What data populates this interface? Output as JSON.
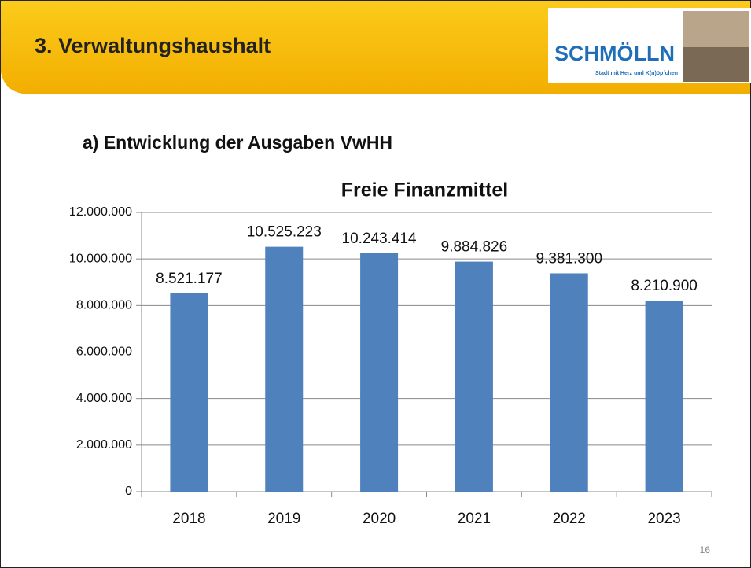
{
  "header": {
    "title": "3. Verwaltungshaushalt",
    "logo": "SCHMÖLLN",
    "slogan": "Stadt mit Herz und K(n)öpfchen"
  },
  "subtitle": "a)  Entwicklung der Ausgaben VwHH",
  "page_number": "16",
  "chart_data": {
    "type": "bar",
    "title": "Freie Finanzmittel",
    "categories": [
      "2018",
      "2019",
      "2020",
      "2021",
      "2022",
      "2023"
    ],
    "values": [
      8521177,
      10525223,
      10243414,
      9884826,
      9381300,
      8210900
    ],
    "value_labels": [
      "8.521.177",
      "10.525.223",
      "10.243.414",
      "9.884.826",
      "9.381.300",
      "8.210.900"
    ],
    "color": "#4f81bd",
    "ylim": [
      0,
      12000000
    ],
    "yticks": [
      0,
      {
        "value": 2000000,
        "label": "2.000.000"
      },
      {
        "value": 4000000,
        "label": "4.000.000"
      },
      {
        "value": 6000000,
        "label": "6.000.000"
      },
      {
        "value": 8000000,
        "label": "8.000.000"
      },
      {
        "value": 10000000,
        "label": "10.000.000"
      },
      {
        "value": 12000000,
        "label": "12.000.000"
      }
    ],
    "grid": true
  }
}
